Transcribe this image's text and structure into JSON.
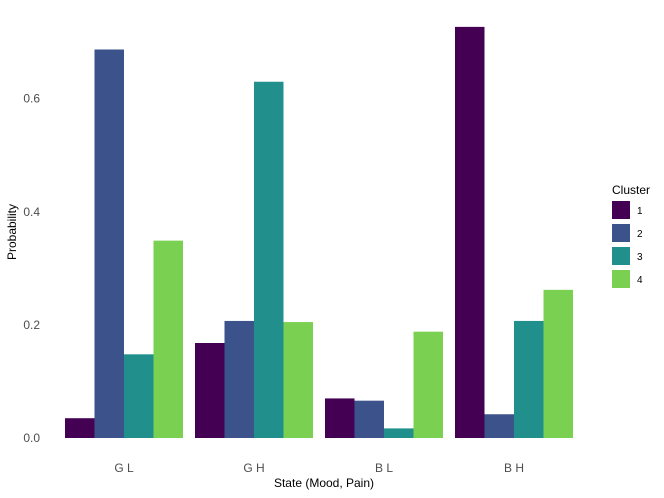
{
  "chart_data": {
    "type": "bar",
    "title": "",
    "xlabel": "State (Mood, Pain)",
    "ylabel": "Probability",
    "categories": [
      "G L",
      "G H",
      "B L",
      "B H"
    ],
    "ylim": [
      0,
      0.73
    ],
    "yticks": [
      "0.0",
      "0.2",
      "0.4",
      "0.6"
    ],
    "grid": false,
    "legend": {
      "title": "Cluster",
      "position": "right"
    },
    "series": [
      {
        "name": "1",
        "color": "#440154",
        "values": [
          0.035,
          0.168,
          0.07,
          0.727
        ]
      },
      {
        "name": "2",
        "color": "#3b528b",
        "values": [
          0.687,
          0.207,
          0.066,
          0.042
        ]
      },
      {
        "name": "3",
        "color": "#21908c",
        "values": [
          0.148,
          0.63,
          0.017,
          0.207
        ]
      },
      {
        "name": "4",
        "color": "#7ad151",
        "values": [
          0.349,
          0.205,
          0.188,
          0.262
        ]
      }
    ]
  }
}
